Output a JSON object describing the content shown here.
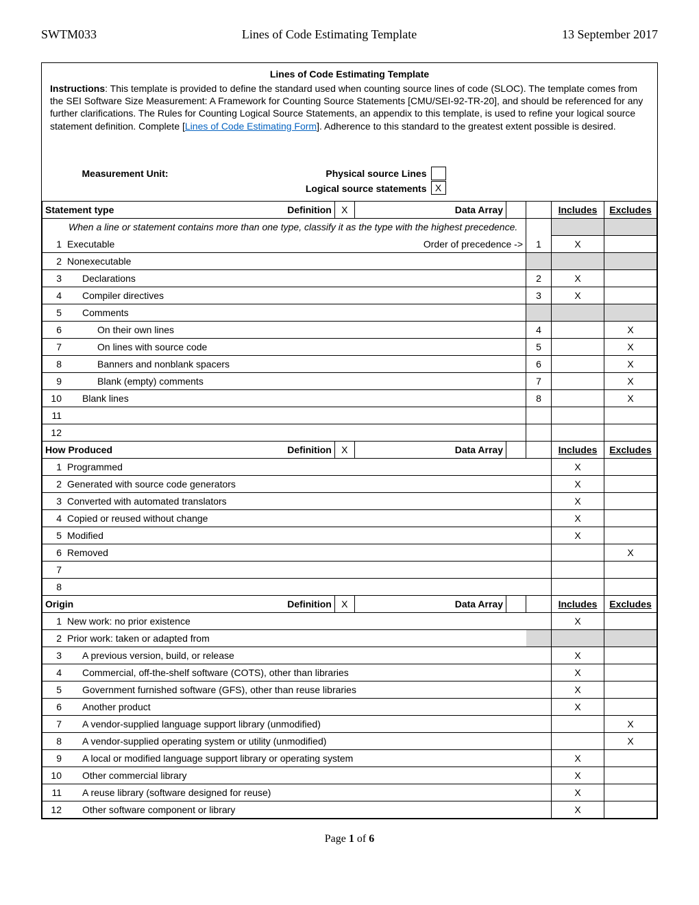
{
  "header": {
    "code": "SWTM033",
    "title": "Lines of Code Estimating Template",
    "date": "13 September 2017"
  },
  "doc_title": "Lines of Code Estimating Template",
  "instructions_label": "Instructions",
  "instructions_text1": ": This template is provided to define the standard used when counting source lines of code (SLOC). The template comes from the SEI Software Size Measurement: A Framework for Counting Source Statements [CMU/SEI-92-TR-20], and should be referenced for any further clarifications. The Rules for Counting Logical Source Statements, an appendix to this template, is used to refine your logical source statement definition. Complete [",
  "instructions_link": "Lines of Code Estimating Form",
  "instructions_text2": "]. Adherence to this standard to the greatest extent possible is desired.",
  "measurement_unit_label": "Measurement Unit:",
  "physical_label": "Physical source Lines",
  "logical_label": "Logical source statements",
  "physical_check": "",
  "logical_check": "X",
  "definition_label": "Definition",
  "data_array_label": "Data Array",
  "includes_label": "Includes",
  "excludes_label": "Excludes",
  "sections": {
    "statement_type": {
      "title": "Statement type",
      "def_check": "X",
      "da_check": "",
      "note": "When a line or statement contains more than one type, classify it as the type with the highest precedence.",
      "order_label": "Order of precedence ->",
      "rows": [
        {
          "n": "1",
          "label": "Executable",
          "order": "1",
          "inc": "X",
          "exc": "",
          "indent": 0,
          "gray": false,
          "order_text": true
        },
        {
          "n": "2",
          "label": "Nonexecutable",
          "order": "",
          "inc": "",
          "exc": "",
          "indent": 0,
          "gray": true
        },
        {
          "n": "3",
          "label": "Declarations",
          "order": "2",
          "inc": "X",
          "exc": "",
          "indent": 1,
          "gray": false
        },
        {
          "n": "4",
          "label": "Compiler directives",
          "order": "3",
          "inc": "X",
          "exc": "",
          "indent": 1,
          "gray": false
        },
        {
          "n": "5",
          "label": "Comments",
          "order": "",
          "inc": "",
          "exc": "",
          "indent": 1,
          "gray": true
        },
        {
          "n": "6",
          "label": "On their own lines",
          "order": "4",
          "inc": "",
          "exc": "X",
          "indent": 2,
          "gray": false
        },
        {
          "n": "7",
          "label": "On lines with source code",
          "order": "5",
          "inc": "",
          "exc": "X",
          "indent": 2,
          "gray": false
        },
        {
          "n": "8",
          "label": "Banners and nonblank spacers",
          "order": "6",
          "inc": "",
          "exc": "X",
          "indent": 2,
          "gray": false
        },
        {
          "n": "9",
          "label": "Blank (empty) comments",
          "order": "7",
          "inc": "",
          "exc": "X",
          "indent": 2,
          "gray": false
        },
        {
          "n": "10",
          "label": "Blank lines",
          "order": "8",
          "inc": "",
          "exc": "X",
          "indent": 1,
          "gray": false
        },
        {
          "n": "11",
          "label": "",
          "order": "",
          "inc": "",
          "exc": "",
          "indent": 0,
          "gray": false
        },
        {
          "n": "12",
          "label": "",
          "order": "",
          "inc": "",
          "exc": "",
          "indent": 0,
          "gray": false
        }
      ]
    },
    "how_produced": {
      "title": "How Produced",
      "def_check": "X",
      "da_check": "",
      "rows": [
        {
          "n": "1",
          "label": "Programmed",
          "inc": "X",
          "exc": ""
        },
        {
          "n": "2",
          "label": "Generated with source code generators",
          "inc": "X",
          "exc": ""
        },
        {
          "n": "3",
          "label": "Converted with automated translators",
          "inc": "X",
          "exc": ""
        },
        {
          "n": "4",
          "label": "Copied or reused without change",
          "inc": "X",
          "exc": ""
        },
        {
          "n": "5",
          "label": "Modified",
          "inc": "X",
          "exc": ""
        },
        {
          "n": "6",
          "label": "Removed",
          "inc": "",
          "exc": "X"
        },
        {
          "n": "7",
          "label": "",
          "inc": "",
          "exc": ""
        },
        {
          "n": "8",
          "label": "",
          "inc": "",
          "exc": ""
        }
      ]
    },
    "origin": {
      "title": "Origin",
      "def_check": "X",
      "da_check": "",
      "rows": [
        {
          "n": "1",
          "label": "New work: no prior existence",
          "inc": "X",
          "exc": "",
          "indent": 0,
          "gray": false
        },
        {
          "n": "2",
          "label": "Prior work: taken or adapted from",
          "inc": "",
          "exc": "",
          "indent": 0,
          "gray": true
        },
        {
          "n": "3",
          "label": "A previous version, build, or release",
          "inc": "X",
          "exc": "",
          "indent": 1,
          "gray": false
        },
        {
          "n": "4",
          "label": "Commercial, off-the-shelf software (COTS), other than libraries",
          "inc": "X",
          "exc": "",
          "indent": 1,
          "gray": false
        },
        {
          "n": "5",
          "label": "Government furnished software (GFS), other than reuse libraries",
          "inc": "X",
          "exc": "",
          "indent": 1,
          "gray": false
        },
        {
          "n": "6",
          "label": "Another product",
          "inc": "X",
          "exc": "",
          "indent": 1,
          "gray": false
        },
        {
          "n": "7",
          "label": "A vendor-supplied language support library (unmodified)",
          "inc": "",
          "exc": "X",
          "indent": 1,
          "gray": false
        },
        {
          "n": "8",
          "label": "A vendor-supplied operating system or utility (unmodified)",
          "inc": "",
          "exc": "X",
          "indent": 1,
          "gray": false
        },
        {
          "n": "9",
          "label": "A local or modified language support library or operating system",
          "inc": "X",
          "exc": "",
          "indent": 1,
          "gray": false
        },
        {
          "n": "10",
          "label": "Other commercial library",
          "inc": "X",
          "exc": "",
          "indent": 1,
          "gray": false
        },
        {
          "n": "11",
          "label": "A reuse library (software designed for reuse)",
          "inc": "X",
          "exc": "",
          "indent": 1,
          "gray": false
        },
        {
          "n": "12",
          "label": "Other software component or library",
          "inc": "X",
          "exc": "",
          "indent": 1,
          "gray": false
        }
      ]
    }
  },
  "page_label": "Page ",
  "page_num": "1",
  "page_of": " of ",
  "page_total": "6"
}
